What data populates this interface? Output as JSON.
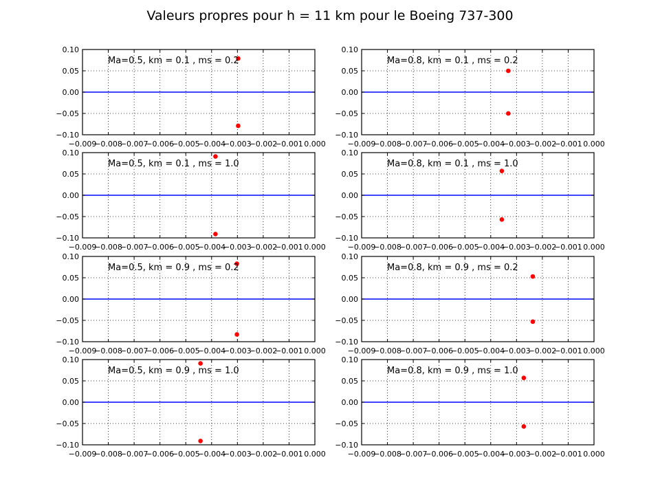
{
  "figure": {
    "title": "Valeurs propres pour h = 11 km pour le Boeing 737-300"
  },
  "chart_data": [
    {
      "type": "scatter",
      "annotation": "Ma=0.5, km = 0.1 , ms = 0.2",
      "xlim": [
        -0.009,
        0.0
      ],
      "ylim": [
        -0.1,
        0.1
      ],
      "grid": true,
      "xticks": [
        "−0.009",
        "−0.008",
        "−0.007",
        "−0.006",
        "−0.005",
        "−0.004",
        "−0.003",
        "−0.002",
        "−0.001",
        "0.000"
      ],
      "yticks": [
        "0.10",
        "0.05",
        "0.00",
        "−0.05",
        "−0.10"
      ],
      "points": [
        {
          "x": -0.00297,
          "y": 0.079
        },
        {
          "x": -0.00297,
          "y": -0.079
        }
      ],
      "reference_line_y": 0.0
    },
    {
      "type": "scatter",
      "annotation": "Ma=0.8, km = 0.1 , ms = 0.2",
      "xlim": [
        -0.009,
        0.0
      ],
      "ylim": [
        -0.1,
        0.1
      ],
      "grid": true,
      "xticks": [
        "−0.009",
        "−0.008",
        "−0.007",
        "−0.006",
        "−0.005",
        "−0.004",
        "−0.003",
        "−0.002",
        "−0.001",
        "0.000"
      ],
      "yticks": [
        "0.10",
        "0.05",
        "0.00",
        "−0.05",
        "−0.10"
      ],
      "points": [
        {
          "x": -0.00332,
          "y": 0.05
        },
        {
          "x": -0.00332,
          "y": -0.05
        }
      ],
      "reference_line_y": 0.0
    },
    {
      "type": "scatter",
      "annotation": "Ma=0.5, km = 0.1 , ms = 1.0",
      "xlim": [
        -0.009,
        0.0
      ],
      "ylim": [
        -0.1,
        0.1
      ],
      "grid": true,
      "xticks": [
        "−0.009",
        "−0.008",
        "−0.007",
        "−0.006",
        "−0.005",
        "−0.004",
        "−0.003",
        "−0.002",
        "−0.001",
        "0.000"
      ],
      "yticks": [
        "0.10",
        "0.05",
        "0.00",
        "−0.05",
        "−0.10"
      ],
      "points": [
        {
          "x": -0.00385,
          "y": 0.091
        },
        {
          "x": -0.00385,
          "y": -0.091
        }
      ],
      "reference_line_y": 0.0
    },
    {
      "type": "scatter",
      "annotation": "Ma=0.8, km = 0.1 , ms = 1.0",
      "xlim": [
        -0.009,
        0.0
      ],
      "ylim": [
        -0.1,
        0.1
      ],
      "grid": true,
      "xticks": [
        "−0.009",
        "−0.008",
        "−0.007",
        "−0.006",
        "−0.005",
        "−0.004",
        "−0.003",
        "−0.002",
        "−0.001",
        "0.000"
      ],
      "yticks": [
        "0.10",
        "0.05",
        "0.00",
        "−0.05",
        "−0.10"
      ],
      "points": [
        {
          "x": -0.00357,
          "y": 0.057
        },
        {
          "x": -0.00357,
          "y": -0.057
        }
      ],
      "reference_line_y": 0.0
    },
    {
      "type": "scatter",
      "annotation": "Ma=0.5, km = 0.9 , ms = 0.2",
      "xlim": [
        -0.009,
        0.0
      ],
      "ylim": [
        -0.1,
        0.1
      ],
      "grid": true,
      "xticks": [
        "−0.009",
        "−0.008",
        "−0.007",
        "−0.006",
        "−0.005",
        "−0.004",
        "−0.003",
        "−0.002",
        "−0.001",
        "0.000"
      ],
      "yticks": [
        "0.10",
        "0.05",
        "0.00",
        "−0.05",
        "−0.10"
      ],
      "points": [
        {
          "x": -0.00302,
          "y": 0.083
        },
        {
          "x": -0.00302,
          "y": -0.083
        }
      ],
      "reference_line_y": 0.0
    },
    {
      "type": "scatter",
      "annotation": "Ma=0.8, km = 0.9 , ms = 0.2",
      "xlim": [
        -0.009,
        0.0
      ],
      "ylim": [
        -0.1,
        0.1
      ],
      "grid": true,
      "xticks": [
        "−0.009",
        "−0.008",
        "−0.007",
        "−0.006",
        "−0.005",
        "−0.004",
        "−0.003",
        "−0.002",
        "−0.001",
        "0.000"
      ],
      "yticks": [
        "0.10",
        "0.05",
        "0.00",
        "−0.05",
        "−0.10"
      ],
      "points": [
        {
          "x": -0.00237,
          "y": 0.053
        },
        {
          "x": -0.00237,
          "y": -0.053
        }
      ],
      "reference_line_y": 0.0
    },
    {
      "type": "scatter",
      "annotation": "Ma=0.5, km = 0.9 , ms = 1.0",
      "xlim": [
        -0.009,
        0.0
      ],
      "ylim": [
        -0.1,
        0.1
      ],
      "grid": true,
      "xticks": [
        "−0.009",
        "−0.008",
        "−0.007",
        "−0.006",
        "−0.005",
        "−0.004",
        "−0.003",
        "−0.002",
        "−0.001",
        "0.000"
      ],
      "yticks": [
        "0.10",
        "0.05",
        "0.00",
        "−0.05",
        "−0.10"
      ],
      "points": [
        {
          "x": -0.00443,
          "y": 0.091
        },
        {
          "x": -0.00443,
          "y": -0.091
        }
      ],
      "reference_line_y": 0.0
    },
    {
      "type": "scatter",
      "annotation": "Ma=0.8, km = 0.9 , ms = 1.0",
      "xlim": [
        -0.009,
        0.0
      ],
      "ylim": [
        -0.1,
        0.1
      ],
      "grid": true,
      "xticks": [
        "−0.009",
        "−0.008",
        "−0.007",
        "−0.006",
        "−0.005",
        "−0.004",
        "−0.003",
        "−0.002",
        "−0.001",
        "0.000"
      ],
      "yticks": [
        "0.10",
        "0.05",
        "0.00",
        "−0.05",
        "−0.10"
      ],
      "points": [
        {
          "x": -0.00272,
          "y": 0.057
        },
        {
          "x": -0.00272,
          "y": -0.057
        }
      ],
      "reference_line_y": 0.0
    }
  ],
  "colors": {
    "points": "#ff0000",
    "reference_line": "#0000ff",
    "grid": "#000000",
    "axes": "#000000"
  }
}
